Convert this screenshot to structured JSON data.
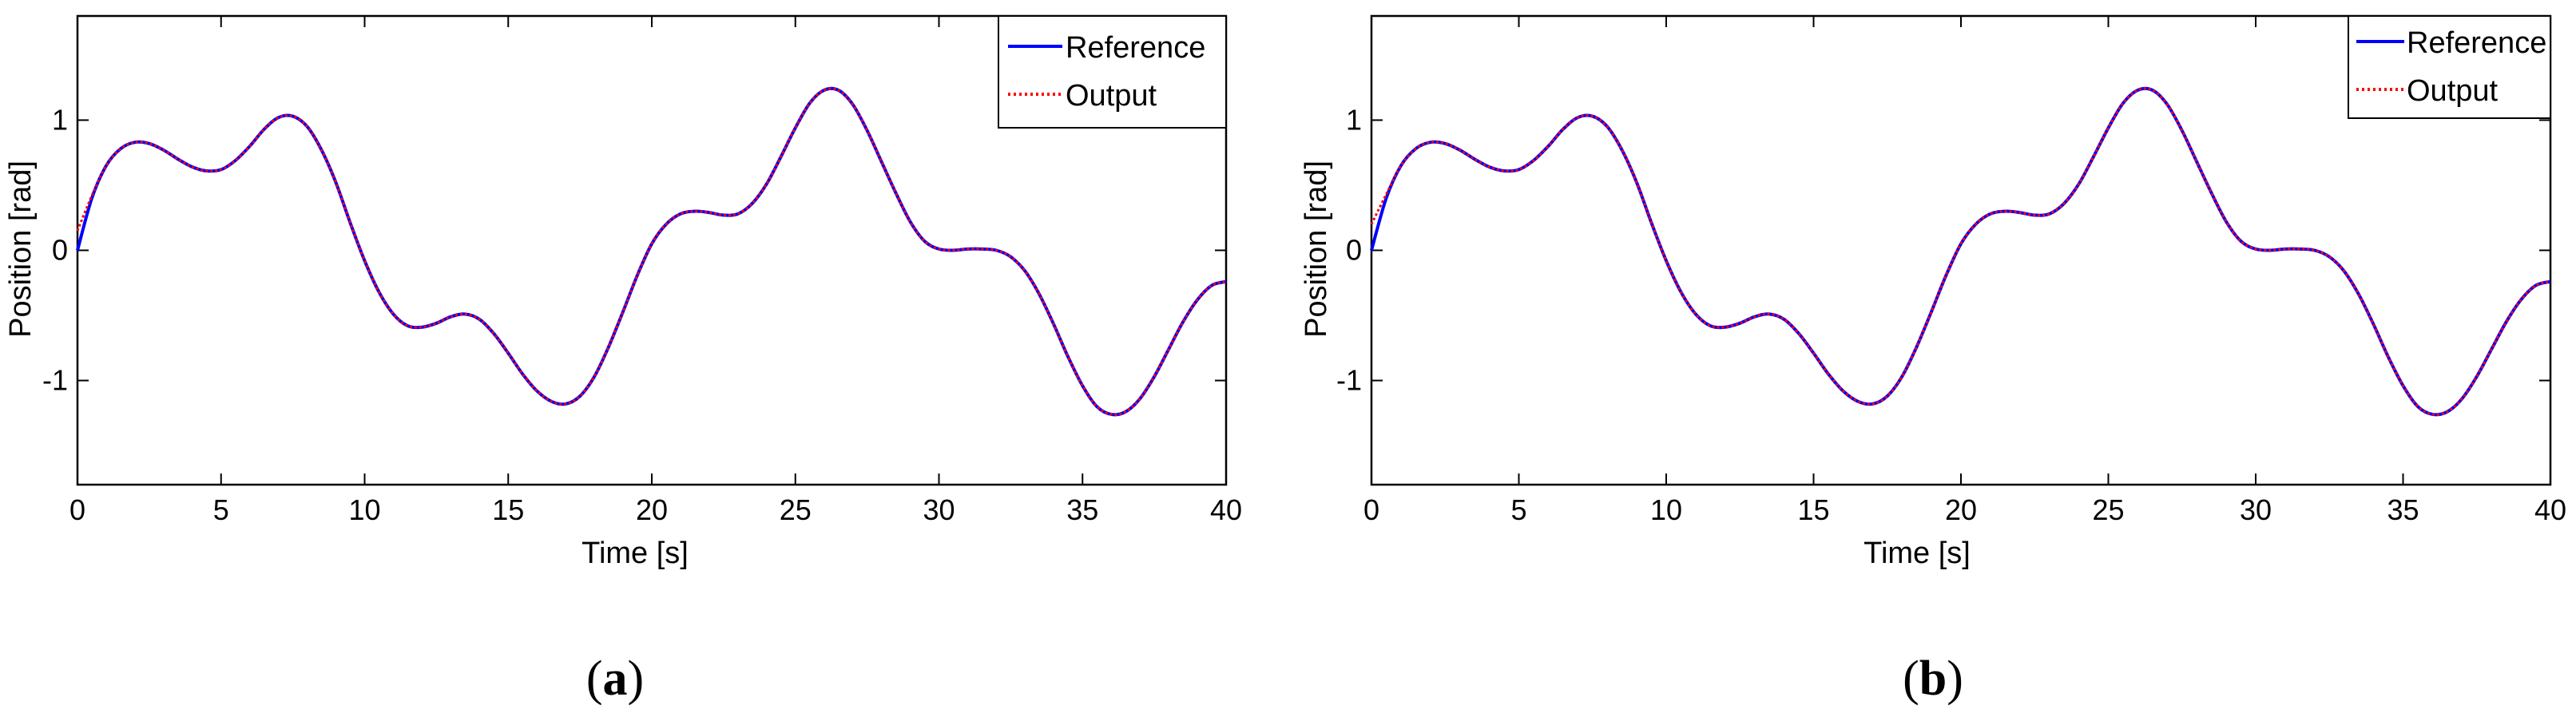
{
  "chart_data": [
    {
      "type": "line",
      "caption_open": "(",
      "caption_letter": "a",
      "caption_close": ")",
      "xlabel": "Time [s]",
      "ylabel": "Position  [rad]",
      "xlim": [
        0,
        40
      ],
      "ylim": [
        -1.8,
        1.8
      ],
      "xticks": [
        0,
        5,
        10,
        15,
        20,
        25,
        30,
        35,
        40
      ],
      "yticks": [
        -1,
        0,
        1
      ],
      "grid": false,
      "legend_position": "top-right",
      "series": [
        {
          "name": "Reference",
          "color": "#0000ff",
          "style": "solid",
          "x": [
            0,
            0.5,
            1,
            1.5,
            2,
            2.5,
            3,
            3.5,
            4,
            4.5,
            5,
            5.5,
            6,
            6.5,
            7,
            7.5,
            8,
            8.5,
            9,
            9.5,
            10,
            10.5,
            11,
            11.5,
            12,
            12.5,
            13,
            13.5,
            14,
            14.5,
            15,
            15.5,
            16,
            16.5,
            17,
            17.5,
            18,
            18.5,
            19,
            19.5,
            20,
            20.5,
            21,
            21.5,
            22,
            22.5,
            23,
            23.5,
            24,
            24.5,
            25,
            25.5,
            26,
            26.5,
            27,
            27.5,
            28,
            28.5,
            29,
            29.5,
            30,
            30.5,
            31,
            31.5,
            32,
            32.5,
            33,
            33.5,
            34,
            34.5,
            35,
            35.5,
            36,
            36.5,
            37,
            37.5,
            38,
            38.5,
            39,
            39.5,
            40
          ],
          "y": [
            0.0,
            0.4,
            0.65,
            0.78,
            0.83,
            0.82,
            0.77,
            0.7,
            0.64,
            0.61,
            0.62,
            0.69,
            0.8,
            0.93,
            1.02,
            1.03,
            0.95,
            0.77,
            0.52,
            0.21,
            -0.08,
            -0.32,
            -0.49,
            -0.58,
            -0.59,
            -0.56,
            -0.51,
            -0.49,
            -0.53,
            -0.64,
            -0.79,
            -0.95,
            -1.08,
            -1.16,
            -1.18,
            -1.12,
            -0.97,
            -0.74,
            -0.47,
            -0.19,
            0.05,
            0.2,
            0.28,
            0.3,
            0.29,
            0.27,
            0.28,
            0.36,
            0.51,
            0.72,
            0.94,
            1.13,
            1.23,
            1.23,
            1.12,
            0.92,
            0.68,
            0.44,
            0.22,
            0.07,
            0.01,
            0.0,
            0.01,
            0.01,
            0.0,
            -0.05,
            -0.16,
            -0.34,
            -0.57,
            -0.82,
            -1.04,
            -1.2,
            -1.26,
            -1.24,
            -1.14,
            -0.97,
            -0.76,
            -0.55,
            -0.38,
            -0.27,
            -0.24
          ]
        },
        {
          "name": "Output",
          "color": "#ff0000",
          "style": "dotted",
          "x": [
            0,
            0.5,
            1,
            1.5,
            2,
            2.5,
            3,
            3.5,
            4,
            4.5,
            5,
            5.5,
            6,
            6.5,
            7,
            7.5,
            8,
            8.5,
            9,
            9.5,
            10,
            10.5,
            11,
            11.5,
            12,
            12.5,
            13,
            13.5,
            14,
            14.5,
            15,
            15.5,
            16,
            16.5,
            17,
            17.5,
            18,
            18.5,
            19,
            19.5,
            20,
            20.5,
            21,
            21.5,
            22,
            22.5,
            23,
            23.5,
            24,
            24.5,
            25,
            25.5,
            26,
            26.5,
            27,
            27.5,
            28,
            28.5,
            29,
            29.5,
            30,
            30.5,
            31,
            31.5,
            32,
            32.5,
            33,
            33.5,
            34,
            34.5,
            35,
            35.5,
            36,
            36.5,
            37,
            37.5,
            38,
            38.5,
            39,
            39.5,
            40
          ],
          "y": [
            0.15,
            0.42,
            0.65,
            0.78,
            0.83,
            0.82,
            0.77,
            0.7,
            0.64,
            0.61,
            0.62,
            0.69,
            0.8,
            0.93,
            1.02,
            1.03,
            0.95,
            0.77,
            0.52,
            0.21,
            -0.08,
            -0.32,
            -0.49,
            -0.58,
            -0.59,
            -0.56,
            -0.51,
            -0.49,
            -0.53,
            -0.64,
            -0.79,
            -0.95,
            -1.08,
            -1.16,
            -1.18,
            -1.12,
            -0.97,
            -0.74,
            -0.47,
            -0.19,
            0.05,
            0.2,
            0.28,
            0.3,
            0.29,
            0.27,
            0.28,
            0.36,
            0.51,
            0.72,
            0.94,
            1.13,
            1.23,
            1.23,
            1.12,
            0.92,
            0.68,
            0.44,
            0.22,
            0.07,
            0.01,
            0.0,
            0.01,
            0.01,
            0.0,
            -0.05,
            -0.16,
            -0.34,
            -0.57,
            -0.82,
            -1.04,
            -1.2,
            -1.26,
            -1.24,
            -1.14,
            -0.97,
            -0.76,
            -0.55,
            -0.38,
            -0.27,
            -0.24
          ]
        }
      ]
    },
    {
      "type": "line",
      "caption_open": "(",
      "caption_letter": "b",
      "caption_close": ")",
      "xlabel": "Time [s]",
      "ylabel": "Position  [rad]",
      "xlim": [
        0,
        40
      ],
      "ylim": [
        -1.8,
        1.8
      ],
      "xticks": [
        0,
        5,
        10,
        15,
        20,
        25,
        30,
        35,
        40
      ],
      "yticks": [
        -1,
        0,
        1
      ],
      "grid": false,
      "legend_position": "top-right",
      "series": [
        {
          "name": "Reference",
          "color": "#0000ff",
          "style": "solid",
          "x": [
            0,
            0.5,
            1,
            1.5,
            2,
            2.5,
            3,
            3.5,
            4,
            4.5,
            5,
            5.5,
            6,
            6.5,
            7,
            7.5,
            8,
            8.5,
            9,
            9.5,
            10,
            10.5,
            11,
            11.5,
            12,
            12.5,
            13,
            13.5,
            14,
            14.5,
            15,
            15.5,
            16,
            16.5,
            17,
            17.5,
            18,
            18.5,
            19,
            19.5,
            20,
            20.5,
            21,
            21.5,
            22,
            22.5,
            23,
            23.5,
            24,
            24.5,
            25,
            25.5,
            26,
            26.5,
            27,
            27.5,
            28,
            28.5,
            29,
            29.5,
            30,
            30.5,
            31,
            31.5,
            32,
            32.5,
            33,
            33.5,
            34,
            34.5,
            35,
            35.5,
            36,
            36.5,
            37,
            37.5,
            38,
            38.5,
            39,
            39.5,
            40
          ],
          "y": [
            0.0,
            0.4,
            0.65,
            0.78,
            0.83,
            0.82,
            0.77,
            0.7,
            0.64,
            0.61,
            0.62,
            0.69,
            0.8,
            0.93,
            1.02,
            1.03,
            0.95,
            0.77,
            0.52,
            0.21,
            -0.08,
            -0.32,
            -0.49,
            -0.58,
            -0.59,
            -0.56,
            -0.51,
            -0.49,
            -0.53,
            -0.64,
            -0.79,
            -0.95,
            -1.08,
            -1.16,
            -1.18,
            -1.12,
            -0.97,
            -0.74,
            -0.47,
            -0.19,
            0.05,
            0.2,
            0.28,
            0.3,
            0.29,
            0.27,
            0.28,
            0.36,
            0.51,
            0.72,
            0.94,
            1.13,
            1.23,
            1.23,
            1.12,
            0.92,
            0.68,
            0.44,
            0.22,
            0.07,
            0.01,
            0.0,
            0.01,
            0.01,
            0.0,
            -0.05,
            -0.16,
            -0.34,
            -0.57,
            -0.82,
            -1.04,
            -1.2,
            -1.26,
            -1.24,
            -1.14,
            -0.97,
            -0.76,
            -0.55,
            -0.38,
            -0.27,
            -0.24
          ]
        },
        {
          "name": "Output",
          "color": "#ff0000",
          "style": "dotted",
          "x": [
            0,
            0.5,
            1,
            1.5,
            2,
            2.5,
            3,
            3.5,
            4,
            4.5,
            5,
            5.5,
            6,
            6.5,
            7,
            7.5,
            8,
            8.5,
            9,
            9.5,
            10,
            10.5,
            11,
            11.5,
            12,
            12.5,
            13,
            13.5,
            14,
            14.5,
            15,
            15.5,
            16,
            16.5,
            17,
            17.5,
            18,
            18.5,
            19,
            19.5,
            20,
            20.5,
            21,
            21.5,
            22,
            22.5,
            23,
            23.5,
            24,
            24.5,
            25,
            25.5,
            26,
            26.5,
            27,
            27.5,
            28,
            28.5,
            29,
            29.5,
            30,
            30.5,
            31,
            31.5,
            32,
            32.5,
            33,
            33.5,
            34,
            34.5,
            35,
            35.5,
            36,
            36.5,
            37,
            37.5,
            38,
            38.5,
            39,
            39.5,
            40
          ],
          "y": [
            0.2,
            0.43,
            0.65,
            0.78,
            0.83,
            0.82,
            0.77,
            0.7,
            0.64,
            0.61,
            0.62,
            0.69,
            0.8,
            0.93,
            1.02,
            1.03,
            0.95,
            0.77,
            0.52,
            0.21,
            -0.08,
            -0.32,
            -0.49,
            -0.58,
            -0.59,
            -0.56,
            -0.51,
            -0.49,
            -0.53,
            -0.64,
            -0.79,
            -0.95,
            -1.08,
            -1.16,
            -1.18,
            -1.12,
            -0.97,
            -0.74,
            -0.47,
            -0.19,
            0.05,
            0.2,
            0.28,
            0.3,
            0.29,
            0.27,
            0.28,
            0.36,
            0.51,
            0.72,
            0.94,
            1.13,
            1.23,
            1.23,
            1.12,
            0.92,
            0.68,
            0.44,
            0.22,
            0.07,
            0.01,
            0.0,
            0.01,
            0.01,
            0.0,
            -0.05,
            -0.16,
            -0.34,
            -0.57,
            -0.82,
            -1.04,
            -1.2,
            -1.26,
            -1.24,
            -1.14,
            -0.97,
            -0.76,
            -0.55,
            -0.38,
            -0.27,
            -0.24
          ]
        }
      ]
    }
  ]
}
